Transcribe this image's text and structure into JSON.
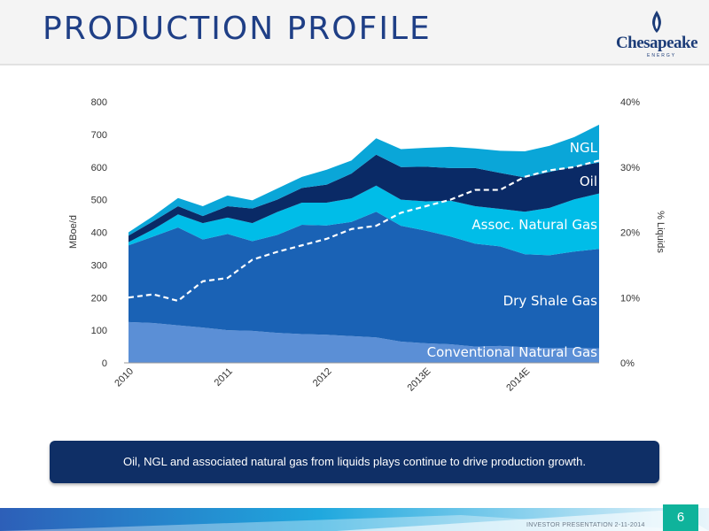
{
  "slide": {
    "title": "PRODUCTION PROFILE",
    "logo_text": "Chesapeake",
    "logo_sub": "ENERGY",
    "callout": "Oil, NGL and associated natural gas from liquids plays continue to drive production growth.",
    "footer": "INVESTOR PRESENTATION 2-11-2014",
    "page_number": "6"
  },
  "chart_data": {
    "type": "area",
    "stacked": true,
    "x": [
      "2010-Q1",
      "2010-Q2",
      "2010-Q3",
      "2010-Q4",
      "2011-Q1",
      "2011-Q2",
      "2011-Q3",
      "2011-Q4",
      "2012-Q1",
      "2012-Q2",
      "2012-Q3",
      "2012-Q4",
      "2013-Q1",
      "2013-Q2",
      "2013-Q3",
      "2013-Q4",
      "2014-Q1",
      "2014-Q2",
      "2014-Q3",
      "2014-Q4"
    ],
    "tick_labels": [
      {
        "label": "2010",
        "index": 0
      },
      {
        "label": "2011",
        "index": 4
      },
      {
        "label": "2012",
        "index": 8
      },
      {
        "label": "2013E",
        "index": 12
      },
      {
        "label": "2014E",
        "index": 16
      }
    ],
    "ylabel": "MBoe/d",
    "y2label": "% Liquids",
    "ylim": [
      0,
      800
    ],
    "y_ticks": [
      "0",
      "100",
      "200",
      "300",
      "400",
      "500",
      "600",
      "700",
      "800"
    ],
    "y2lim": [
      0,
      40
    ],
    "y2_ticks": [
      "0%",
      "10%",
      "20%",
      "30%",
      "40%"
    ],
    "series": [
      {
        "name": "Conventional Natural Gas",
        "color": "#5b8fd6",
        "values": [
          125,
          122,
          115,
          108,
          100,
          98,
          92,
          88,
          86,
          82,
          78,
          65,
          60,
          57,
          50,
          52,
          48,
          45,
          46,
          44
        ]
      },
      {
        "name": "Dry Shale Gas",
        "color": "#1a62b5",
        "values": [
          235,
          265,
          300,
          270,
          295,
          275,
          300,
          335,
          335,
          350,
          385,
          355,
          345,
          330,
          315,
          305,
          285,
          285,
          295,
          305
        ]
      },
      {
        "name": "Assoc. Natural Gas",
        "color": "#00bde8",
        "values": [
          10,
          22,
          40,
          50,
          50,
          55,
          70,
          68,
          70,
          72,
          80,
          80,
          90,
          110,
          115,
          115,
          130,
          145,
          160,
          170
        ]
      },
      {
        "name": "Oil",
        "color": "#0a2a66",
        "values": [
          20,
          25,
          25,
          22,
          35,
          45,
          38,
          45,
          55,
          76,
          95,
          100,
          106,
          100,
          117,
          110,
          105,
          110,
          100,
          95
        ]
      },
      {
        "name": "NGL",
        "color": "#0aa6d8",
        "values": [
          10,
          16,
          25,
          30,
          33,
          25,
          34,
          34,
          46,
          40,
          50,
          55,
          58,
          65,
          60,
          68,
          80,
          80,
          91,
          116
        ]
      }
    ],
    "liquids_pct": {
      "name": "% Liquids",
      "values": [
        10,
        10.5,
        9.5,
        12.5,
        13,
        15.8,
        17,
        18,
        19,
        20.5,
        21,
        23,
        24,
        25,
        26.5,
        26.5,
        28.5,
        29.5,
        30,
        31
      ]
    },
    "grid": false
  }
}
